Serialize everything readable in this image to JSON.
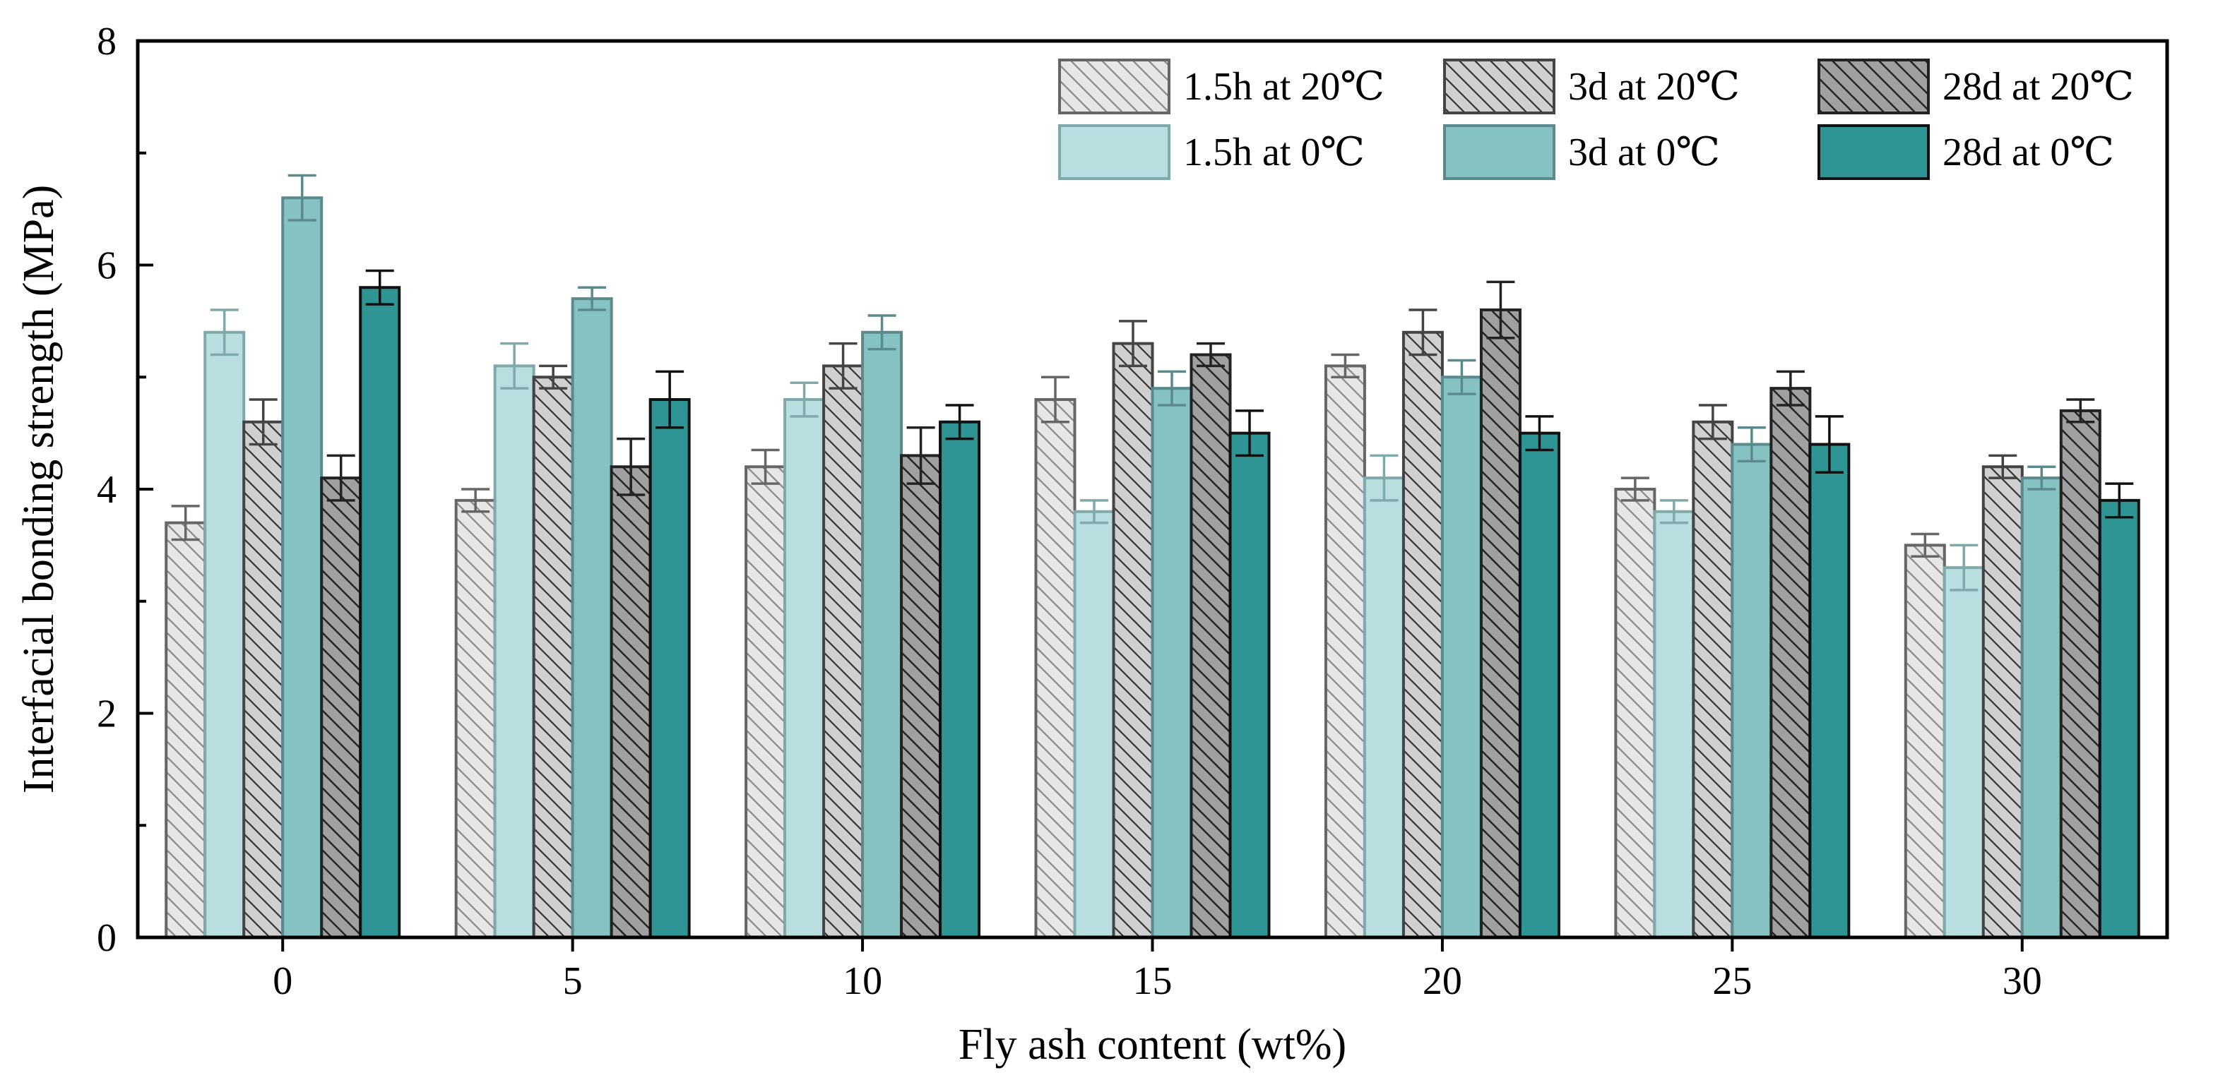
{
  "chart_data": {
    "type": "bar",
    "title": "",
    "xlabel": "Fly ash content (wt%)",
    "ylabel": "Interfacial bonding strength (MPa)",
    "categories": [
      "0",
      "5",
      "10",
      "15",
      "20",
      "25",
      "30"
    ],
    "ylim": [
      0,
      8
    ],
    "yticks": [
      "0",
      "2",
      "4",
      "6",
      "8"
    ],
    "grid": false,
    "legend_position": "top-right",
    "series": [
      {
        "name": "1.5h at 20℃",
        "values": [
          3.7,
          3.9,
          4.2,
          4.8,
          5.1,
          4.0,
          3.5
        ],
        "errors": [
          0.15,
          0.1,
          0.15,
          0.2,
          0.1,
          0.1,
          0.1
        ],
        "color": "#e6e6e6",
        "stroke": "#666666",
        "hatch": true
      },
      {
        "name": "1.5h at 0℃",
        "values": [
          5.4,
          5.1,
          4.8,
          3.8,
          4.1,
          3.8,
          3.3
        ],
        "errors": [
          0.2,
          0.2,
          0.15,
          0.1,
          0.2,
          0.1,
          0.2
        ],
        "color": "#b9dedf",
        "stroke": "#7fa9aa",
        "hatch": false
      },
      {
        "name": "3d at 20℃",
        "values": [
          4.6,
          5.0,
          5.1,
          5.3,
          5.4,
          4.6,
          4.2
        ],
        "errors": [
          0.2,
          0.1,
          0.2,
          0.2,
          0.2,
          0.15,
          0.1
        ],
        "color": "#d0d0d0",
        "stroke": "#444444",
        "hatch": true
      },
      {
        "name": "3d at 0℃",
        "values": [
          6.6,
          5.7,
          5.4,
          4.9,
          5.0,
          4.4,
          4.1
        ],
        "errors": [
          0.2,
          0.1,
          0.15,
          0.15,
          0.15,
          0.15,
          0.1
        ],
        "color": "#87c2c3",
        "stroke": "#5a8a8b",
        "hatch": false
      },
      {
        "name": "28d at 20℃",
        "values": [
          4.1,
          4.2,
          4.3,
          5.2,
          5.6,
          4.9,
          4.7
        ],
        "errors": [
          0.2,
          0.25,
          0.25,
          0.1,
          0.25,
          0.15,
          0.1
        ],
        "color": "#a0a0a0",
        "stroke": "#222222",
        "hatch": true
      },
      {
        "name": "28d at 0℃",
        "values": [
          5.8,
          4.8,
          4.6,
          4.5,
          4.5,
          4.4,
          3.9
        ],
        "errors": [
          0.15,
          0.25,
          0.15,
          0.2,
          0.15,
          0.25,
          0.15
        ],
        "color": "#2e9494",
        "stroke": "#111111",
        "hatch": false
      }
    ]
  }
}
